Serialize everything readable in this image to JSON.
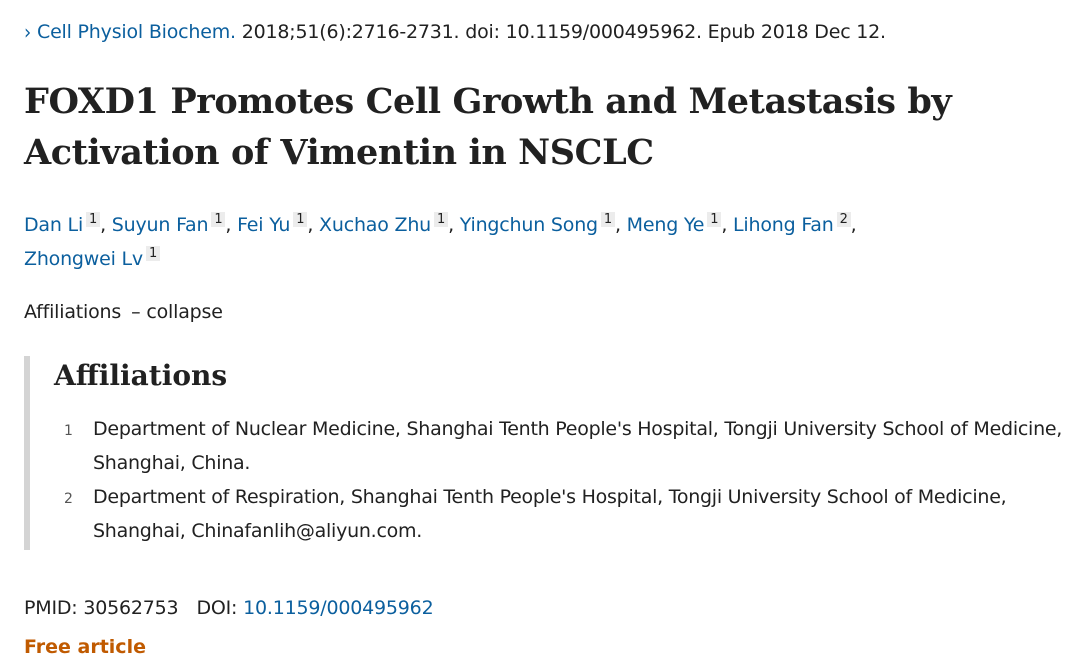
{
  "citation": {
    "journal": "Cell Physiol Biochem.",
    "details": " 2018;51(6):2716-2731. doi: 10.1159/000495962. Epub 2018 Dec 12."
  },
  "title": "FOXD1 Promotes Cell Growth and Metastasis by Activation of Vimentin in NSCLC",
  "authors": [
    {
      "name": "Dan Li",
      "aff": "1",
      "sep": ","
    },
    {
      "name": "Suyun Fan",
      "aff": "1",
      "sep": ","
    },
    {
      "name": "Fei Yu",
      "aff": "1",
      "sep": ","
    },
    {
      "name": "Xuchao Zhu",
      "aff": "1",
      "sep": ","
    },
    {
      "name": "Yingchun Song",
      "aff": "1",
      "sep": ","
    },
    {
      "name": "Meng Ye",
      "aff": "1",
      "sep": ","
    },
    {
      "name": "Lihong Fan",
      "aff": "2",
      "sep": ","
    },
    {
      "name": "Zhongwei Lv",
      "aff": "1",
      "sep": ""
    }
  ],
  "affiliations_toggle": {
    "label": "Affiliations",
    "dash": "–",
    "action": "collapse"
  },
  "affiliations": {
    "heading": "Affiliations",
    "items": [
      {
        "num": "1",
        "text": "Department of Nuclear Medicine, Shanghai Tenth People's Hospital, Tongji University School of Medicine, Shanghai, China."
      },
      {
        "num": "2",
        "text": "Department of Respiration, Shanghai Tenth People's Hospital, Tongji University School of Medicine, Shanghai, Chinafanlih@aliyun.com."
      }
    ]
  },
  "ids": {
    "pmid_label": "PMID:",
    "pmid": "30562753",
    "doi_label": "DOI:",
    "doi": "10.1159/000495962"
  },
  "free_article": "Free article",
  "icons": {
    "citation_chevron": "chevron-right-icon"
  },
  "colors": {
    "link": "#0b5f9e",
    "free": "#c05a00",
    "text": "#212121"
  }
}
